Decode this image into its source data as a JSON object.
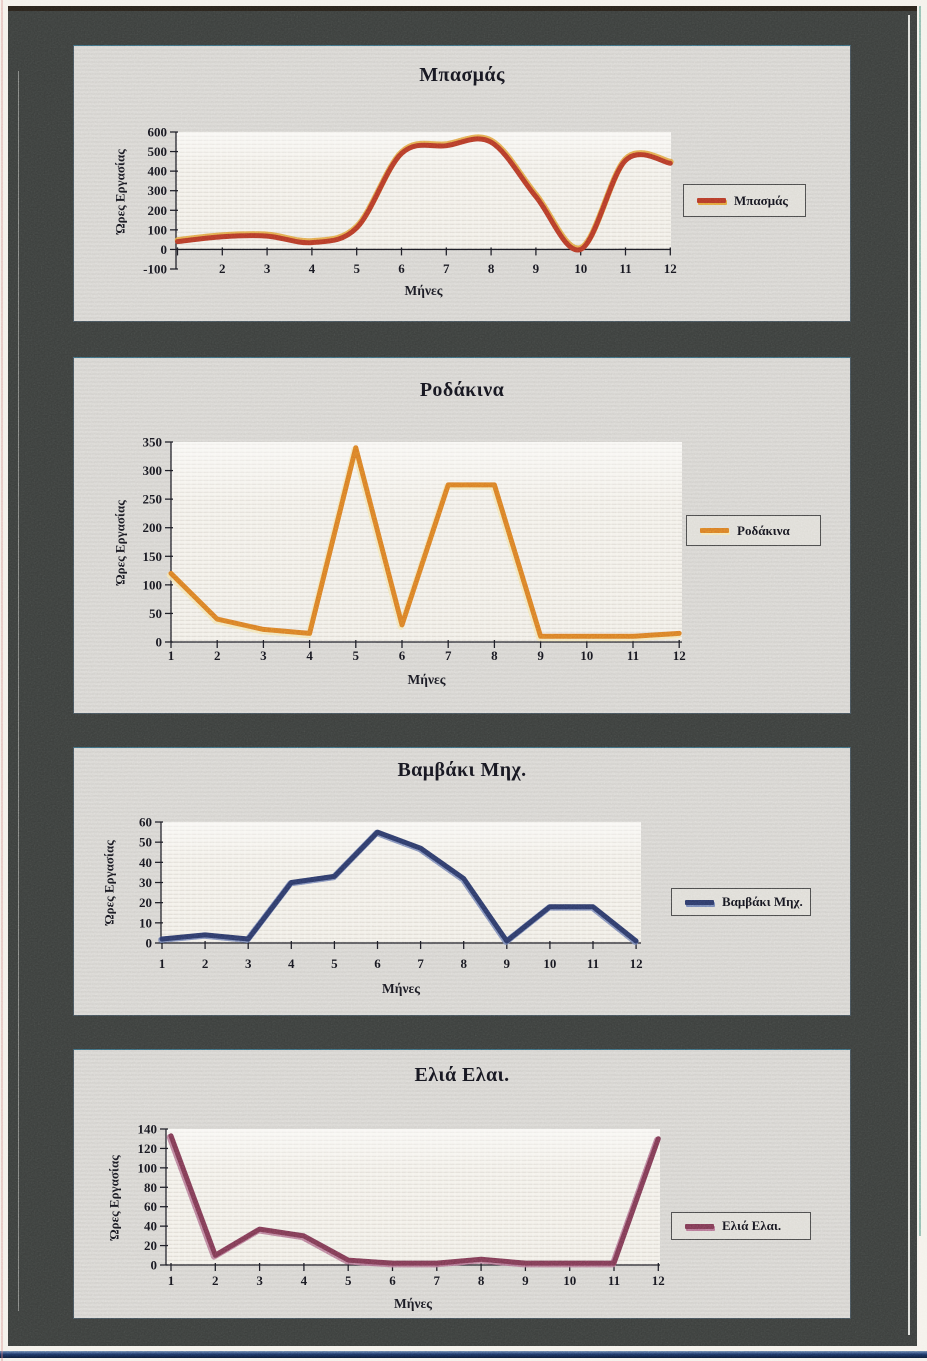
{
  "page": {
    "background_color": "#f4f1ea",
    "frame_color": "#3a3d3b",
    "panel_color": "#d6d4d0",
    "text_color": "#16161f",
    "scan_bottom_edge_color": "#1d3765",
    "scan_right_edge_color": "#2e8a74"
  },
  "chart_data": [
    {
      "type": "line",
      "title": "Μπασμάς",
      "xlabel": "Μήνες",
      "ylabel": "Ώρες Εργασίας",
      "x": [
        1,
        2,
        3,
        4,
        5,
        6,
        7,
        8,
        9,
        10,
        11,
        12
      ],
      "xticks_shown": [
        2,
        3,
        4,
        5,
        6,
        7,
        8,
        9,
        10,
        11,
        12
      ],
      "ylim": [
        -100,
        600
      ],
      "ytick_step": 100,
      "grid": false,
      "legend_position": "right",
      "series": [
        {
          "name": "Μπασμάς",
          "values": [
            40,
            65,
            68,
            35,
            110,
            490,
            530,
            548,
            270,
            0,
            455,
            440
          ],
          "smooth": true,
          "color": "#b23a28",
          "fringe_color": "#dfa03c"
        }
      ]
    },
    {
      "type": "line",
      "title": "Ροδάκινα",
      "xlabel": "Μήνες",
      "ylabel": "Ώρες Εργασίας",
      "x": [
        1,
        2,
        3,
        4,
        5,
        6,
        7,
        8,
        9,
        10,
        11,
        12
      ],
      "xticks_shown": [
        1,
        2,
        3,
        4,
        5,
        6,
        7,
        8,
        9,
        10,
        11,
        12
      ],
      "ylim": [
        0,
        350
      ],
      "ytick_step": 50,
      "grid": false,
      "legend_position": "right",
      "series": [
        {
          "name": "Ροδάκινα",
          "values": [
            120,
            40,
            22,
            15,
            340,
            30,
            275,
            275,
            10,
            10,
            10,
            15
          ],
          "smooth": false,
          "color": "#d87b26",
          "fringe_color": "#f1e3b4"
        }
      ]
    },
    {
      "type": "line",
      "title": "Βαμβάκι Μηχ.",
      "xlabel": "Μήνες",
      "ylabel": "Ώρες Εργασίας",
      "x": [
        1,
        2,
        3,
        4,
        5,
        6,
        7,
        8,
        9,
        10,
        11,
        12
      ],
      "xticks_shown": [
        1,
        2,
        3,
        4,
        5,
        6,
        7,
        8,
        9,
        10,
        11,
        12
      ],
      "ylim": [
        0,
        60
      ],
      "ytick_step": 10,
      "grid": false,
      "legend_position": "right",
      "series": [
        {
          "name": "Βαμβάκι Μηχ.",
          "values": [
            2,
            4,
            2,
            30,
            33,
            55,
            47,
            32,
            1,
            18,
            18,
            1
          ],
          "smooth": false,
          "color": "#2e3a66",
          "fringe_color": "#7383b2"
        }
      ]
    },
    {
      "type": "line",
      "title": "Ελιά Ελαι.",
      "xlabel": "Μήνες",
      "ylabel": "Ώρες Εργασίας",
      "x": [
        1,
        2,
        3,
        4,
        5,
        6,
        7,
        8,
        9,
        10,
        11,
        12
      ],
      "xticks_shown": [
        1,
        2,
        3,
        4,
        5,
        6,
        7,
        8,
        9,
        10,
        11,
        12
      ],
      "ylim": [
        0,
        140
      ],
      "ytick_step": 20,
      "grid": false,
      "legend_position": "right",
      "series": [
        {
          "name": "Ελιά Ελαι.",
          "values": [
            133,
            10,
            37,
            30,
            5,
            2,
            2,
            6,
            2,
            2,
            2,
            130
          ],
          "smooth": false,
          "color": "#7b3a52",
          "fringe_color": "#b37390"
        }
      ]
    }
  ]
}
